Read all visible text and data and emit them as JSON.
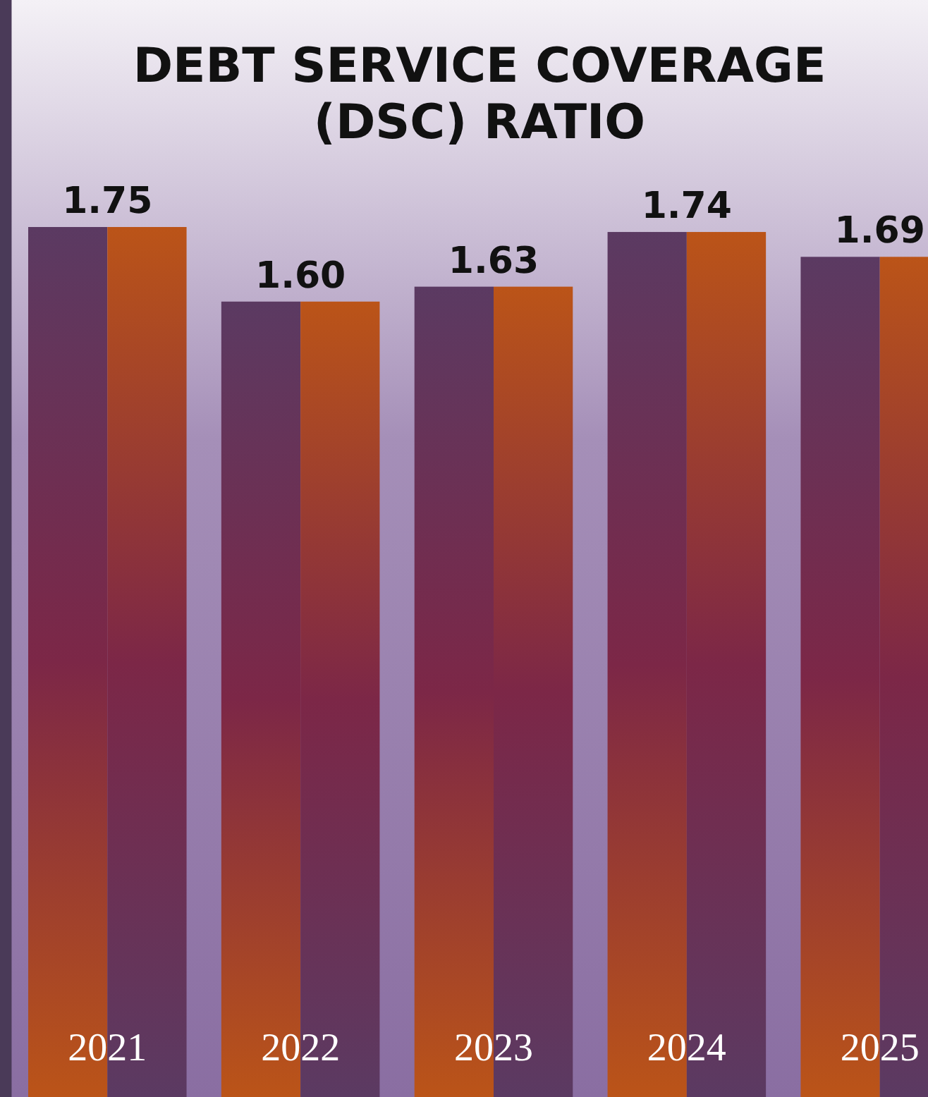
{
  "chart_data": {
    "type": "bar",
    "title": "DEBT SERVICE COVERAGE (DSC) RATIO",
    "categories": [
      "2021",
      "2022",
      "2023",
      "2024",
      "2025"
    ],
    "series": [
      {
        "color": "#5b3a62",
        "values": [
          1.75,
          1.6,
          1.63,
          1.74,
          1.69
        ],
        "value_labels": [
          "1.75",
          "1.60",
          "1.63",
          "1.74",
          "1.69"
        ]
      },
      {
        "color": "#bb5418",
        "values": [
          1.75,
          1.6,
          1.63,
          1.74,
          1.69
        ]
      }
    ]
  }
}
